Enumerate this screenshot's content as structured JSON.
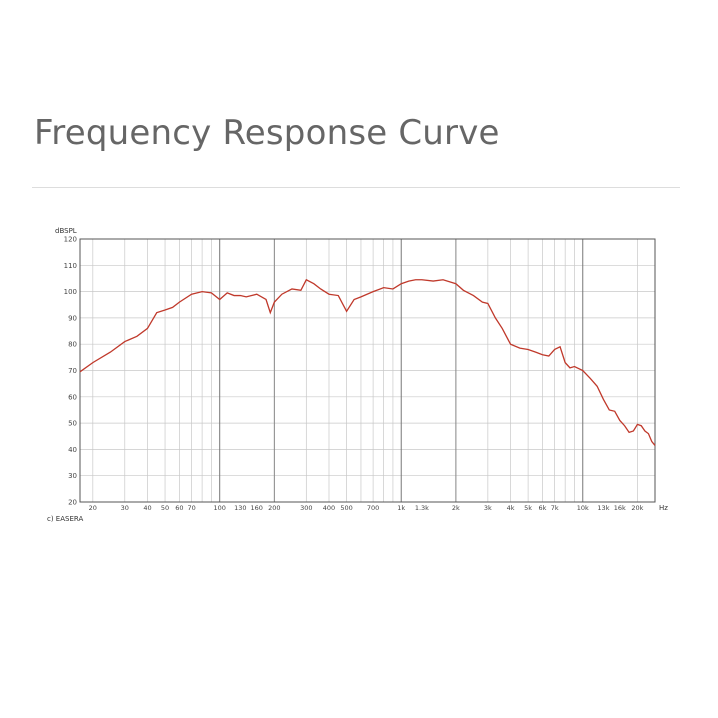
{
  "page": {
    "title": "Frequency Response Curve"
  },
  "credit": "c) EASERA",
  "colors": {
    "curve": "#c0392b",
    "grid": "#c8c8c8",
    "frame": "#555555",
    "title": "#666666"
  },
  "chart_data": {
    "type": "line",
    "ylabel": "dBSPL",
    "xunit": "Hz",
    "x_scale": "log",
    "xlim": [
      17,
      25000
    ],
    "ylim": [
      20,
      120
    ],
    "y_ticks": [
      20,
      30,
      40,
      50,
      60,
      70,
      80,
      90,
      100,
      110,
      120
    ],
    "x_tick_labels": [
      {
        "v": 20,
        "label": "20"
      },
      {
        "v": 30,
        "label": "30"
      },
      {
        "v": 40,
        "label": "40"
      },
      {
        "v": 50,
        "label": "50"
      },
      {
        "v": 60,
        "label": "60"
      },
      {
        "v": 70,
        "label": "70"
      },
      {
        "v": 100,
        "label": "100"
      },
      {
        "v": 130,
        "label": "130"
      },
      {
        "v": 160,
        "label": "160"
      },
      {
        "v": 200,
        "label": "200"
      },
      {
        "v": 300,
        "label": "300"
      },
      {
        "v": 400,
        "label": "400"
      },
      {
        "v": 500,
        "label": "500"
      },
      {
        "v": 700,
        "label": "700"
      },
      {
        "v": 1000,
        "label": "1k"
      },
      {
        "v": 1300,
        "label": "1.3k"
      },
      {
        "v": 2000,
        "label": "2k"
      },
      {
        "v": 3000,
        "label": "3k"
      },
      {
        "v": 4000,
        "label": "4k"
      },
      {
        "v": 5000,
        "label": "5k"
      },
      {
        "v": 6000,
        "label": "6k"
      },
      {
        "v": 7000,
        "label": "7k"
      },
      {
        "v": 10000,
        "label": "10k"
      },
      {
        "v": 13000,
        "label": "13k"
      },
      {
        "v": 16000,
        "label": "16k"
      },
      {
        "v": 20000,
        "label": "20k"
      }
    ],
    "grid": true,
    "series": [
      {
        "x": [
          17,
          20,
          25,
          30,
          35,
          40,
          45,
          50,
          55,
          60,
          70,
          80,
          90,
          100,
          110,
          120,
          130,
          140,
          160,
          180,
          190,
          200,
          220,
          250,
          280,
          300,
          330,
          360,
          400,
          450,
          500,
          550,
          600,
          700,
          800,
          900,
          1000,
          1100,
          1200,
          1300,
          1500,
          1700,
          2000,
          2200,
          2500,
          2800,
          3000,
          3300,
          3600,
          4000,
          4500,
          5000,
          5500,
          6000,
          6500,
          7000,
          7500,
          8000,
          8500,
          9000,
          10000,
          11000,
          12000,
          13000,
          14000,
          15000,
          16000,
          17000,
          18000,
          19000,
          20000,
          21000,
          22000,
          23000,
          24000,
          25000
        ],
        "y": [
          69.5,
          73,
          77,
          81,
          83,
          86,
          92,
          93,
          94,
          96,
          99,
          100,
          99.5,
          97,
          99.5,
          98.5,
          98.5,
          98,
          99,
          97,
          92,
          96,
          99,
          101,
          100.5,
          104.5,
          103,
          101,
          99,
          98.5,
          92.5,
          97,
          98,
          100,
          101.5,
          101,
          103,
          104,
          104.5,
          104.5,
          104,
          104.5,
          103,
          100.5,
          98.5,
          96,
          95.5,
          90,
          86,
          80,
          78.5,
          78,
          77,
          76,
          75.5,
          78,
          79,
          73,
          71,
          71.5,
          70,
          67,
          64,
          59,
          55,
          54.5,
          51,
          49,
          46.5,
          47,
          49.5,
          49,
          47,
          46,
          43,
          41.5
        ]
      }
    ]
  }
}
